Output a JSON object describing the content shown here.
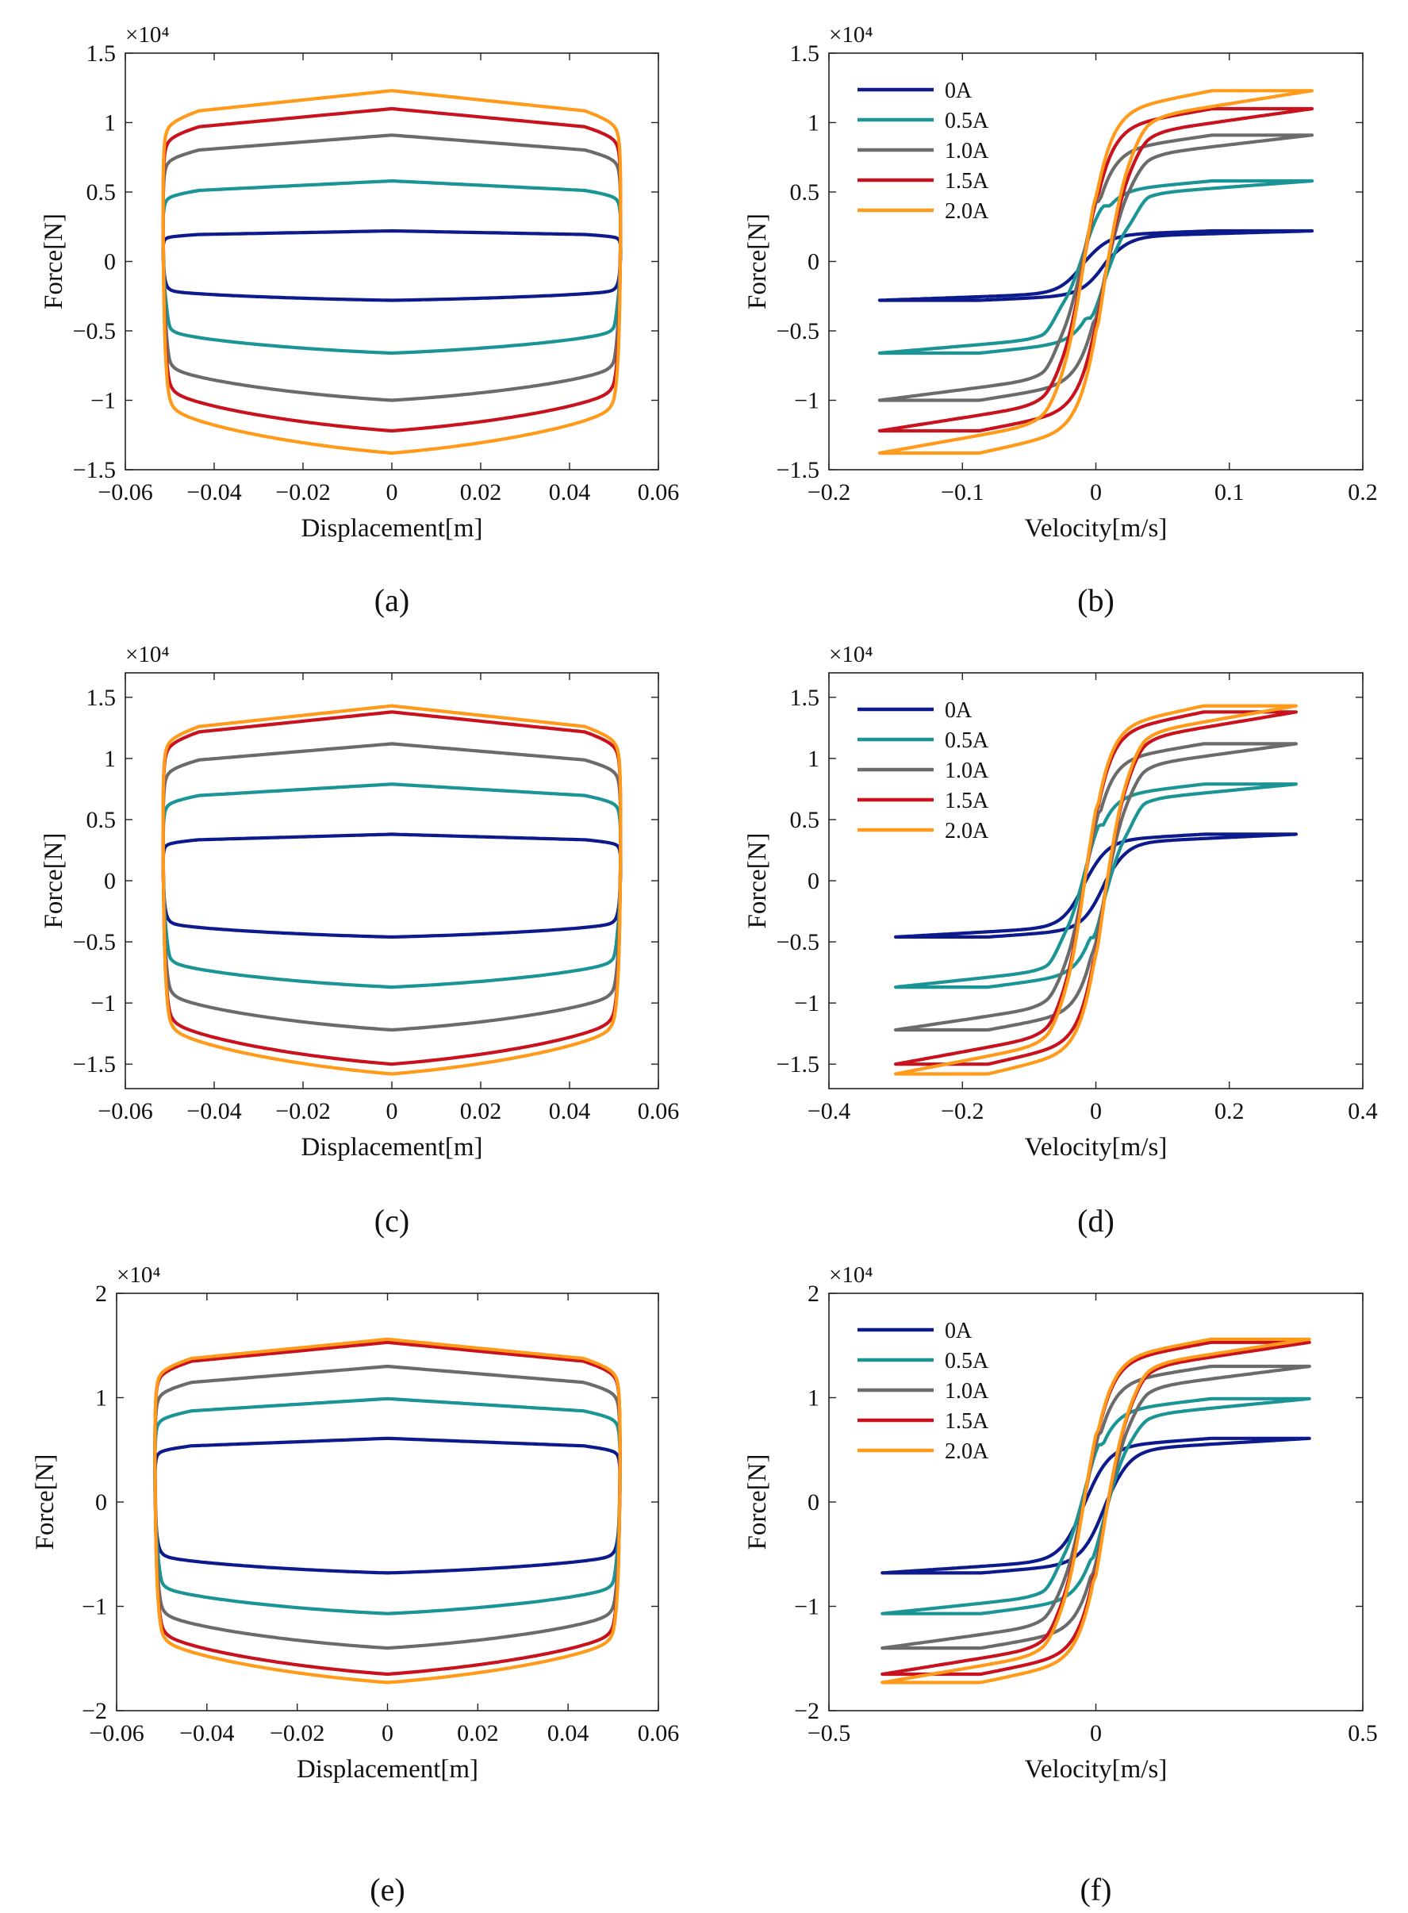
{
  "figure": {
    "series_names": [
      "0A",
      "0.5A",
      "1.0A",
      "1.5A",
      "2.0A"
    ],
    "series_colors": [
      "#0d1a8c",
      "#1a9494",
      "#6b6b6b",
      "#c8121e",
      "#ff9a1a"
    ]
  },
  "chart_data": [
    {
      "id": "a",
      "caption": "(a)",
      "type": "line",
      "kind": "disp",
      "xlabel": "Displacement[m]",
      "ylabel": "Force[N]",
      "multiplier": "×10⁴",
      "xlim": [
        -0.06,
        0.06
      ],
      "ylim": [
        -1.5,
        1.5
      ],
      "xticks": [
        "−0.06",
        "−0.04",
        "−0.02",
        "0",
        "0.02",
        "0.04",
        "0.06"
      ],
      "yticks": [
        "−1.5",
        "−1",
        "−0.5",
        "0",
        "0.5",
        "1",
        "1.5"
      ],
      "amplitude": 0.0515,
      "velocity_amplitude": 0.162,
      "series": [
        {
          "name": "0A",
          "upper": 0.22,
          "lower": -0.28,
          "knee": 0.0
        },
        {
          "name": "0.5A",
          "upper": 0.58,
          "lower": -0.66,
          "knee": 0.38
        },
        {
          "name": "1.0A",
          "upper": 0.91,
          "lower": -1.0,
          "knee": 0.38
        },
        {
          "name": "1.5A",
          "upper": 1.1,
          "lower": -1.22,
          "knee": 0.38
        },
        {
          "name": "2.0A",
          "upper": 1.23,
          "lower": -1.38,
          "knee": 0.38
        }
      ]
    },
    {
      "id": "b",
      "caption": "(b)",
      "type": "line",
      "kind": "vel",
      "xlabel": "Velocity[m/s]",
      "ylabel": "Force[N]",
      "multiplier": "×10⁴",
      "xlim": [
        -0.2,
        0.2
      ],
      "ylim": [
        -1.5,
        1.5
      ],
      "xticks": [
        "−0.2",
        "−0.1",
        "0",
        "0.1",
        "0.2"
      ],
      "yticks": [
        "−1.5",
        "−1",
        "−0.5",
        "0",
        "0.5",
        "1",
        "1.5"
      ],
      "velocity_amplitude": 0.162,
      "legend": "top-left",
      "series": [
        {
          "name": "0A",
          "upper": 0.22,
          "lower": -0.28,
          "knee": 0.0
        },
        {
          "name": "0.5A",
          "upper": 0.58,
          "lower": -0.66,
          "knee": 0.38
        },
        {
          "name": "1.0A",
          "upper": 0.91,
          "lower": -1.0,
          "knee": 0.38
        },
        {
          "name": "1.5A",
          "upper": 1.1,
          "lower": -1.22,
          "knee": 0.38
        },
        {
          "name": "2.0A",
          "upper": 1.23,
          "lower": -1.38,
          "knee": 0.38
        }
      ]
    },
    {
      "id": "c",
      "caption": "(c)",
      "type": "line",
      "kind": "disp",
      "xlabel": "Displacement[m]",
      "ylabel": "Force[N]",
      "multiplier": "×10⁴",
      "xlim": [
        -0.06,
        0.06
      ],
      "ylim": [
        -1.7,
        1.7
      ],
      "xticks": [
        "−0.06",
        "−0.04",
        "−0.02",
        "0",
        "0.02",
        "0.04",
        "0.06"
      ],
      "yticks": [
        "−1.5",
        "−1",
        "−0.5",
        "0",
        "0.5",
        "1",
        "1.5"
      ],
      "amplitude": 0.0515,
      "velocity_amplitude": 0.3,
      "series": [
        {
          "name": "0A",
          "upper": 0.38,
          "lower": -0.46,
          "knee": 0.0
        },
        {
          "name": "0.5A",
          "upper": 0.79,
          "lower": -0.87,
          "knee": 0.42
        },
        {
          "name": "1.0A",
          "upper": 1.12,
          "lower": -1.22,
          "knee": 0.5
        },
        {
          "name": "1.5A",
          "upper": 1.38,
          "lower": -1.5,
          "knee": 0.5
        },
        {
          "name": "2.0A",
          "upper": 1.43,
          "lower": -1.58,
          "knee": 0.5
        }
      ]
    },
    {
      "id": "d",
      "caption": "(d)",
      "type": "line",
      "kind": "vel",
      "xlabel": "Velocity[m/s]",
      "ylabel": "Force[N]",
      "multiplier": "×10⁴",
      "xlim": [
        -0.4,
        0.4
      ],
      "ylim": [
        -1.7,
        1.7
      ],
      "xticks": [
        "−0.4",
        "−0.2",
        "0",
        "0.2",
        "0.4"
      ],
      "yticks": [
        "−1.5",
        "−1",
        "−0.5",
        "0",
        "0.5",
        "1",
        "1.5"
      ],
      "velocity_amplitude": 0.3,
      "legend": "top-left",
      "series": [
        {
          "name": "0A",
          "upper": 0.38,
          "lower": -0.46,
          "knee": 0.0
        },
        {
          "name": "0.5A",
          "upper": 0.79,
          "lower": -0.87,
          "knee": 0.42
        },
        {
          "name": "1.0A",
          "upper": 1.12,
          "lower": -1.22,
          "knee": 0.5
        },
        {
          "name": "1.5A",
          "upper": 1.38,
          "lower": -1.5,
          "knee": 0.5
        },
        {
          "name": "2.0A",
          "upper": 1.43,
          "lower": -1.58,
          "knee": 0.5
        }
      ]
    },
    {
      "id": "e",
      "caption": "(e)",
      "type": "line",
      "kind": "disp",
      "xlabel": "Displacement[m]",
      "ylabel": "Force[N]",
      "multiplier": "×10⁴",
      "xlim": [
        -0.06,
        0.06
      ],
      "ylim": [
        -2,
        2
      ],
      "xticks": [
        "−0.06",
        "−0.04",
        "−0.02",
        "0",
        "0.02",
        "0.04",
        "0.06"
      ],
      "yticks": [
        "−2",
        "−1",
        "0",
        "1",
        "2"
      ],
      "amplitude": 0.0515,
      "velocity_amplitude": 0.4,
      "series": [
        {
          "name": "0A",
          "upper": 0.61,
          "lower": -0.68,
          "knee": 0.0
        },
        {
          "name": "0.5A",
          "upper": 0.99,
          "lower": -1.07,
          "knee": 0.5
        },
        {
          "name": "1.0A",
          "upper": 1.3,
          "lower": -1.4,
          "knee": 0.6
        },
        {
          "name": "1.5A",
          "upper": 1.53,
          "lower": -1.65,
          "knee": 0.6
        },
        {
          "name": "2.0A",
          "upper": 1.56,
          "lower": -1.73,
          "knee": 0.6
        }
      ]
    },
    {
      "id": "f",
      "caption": "(f)",
      "type": "line",
      "kind": "vel",
      "xlabel": "Velocity[m/s]",
      "ylabel": "Force[N]",
      "multiplier": "×10⁴",
      "xlim": [
        -0.5,
        0.5
      ],
      "ylim": [
        -2,
        2
      ],
      "xticks": [
        "−0.5",
        "0",
        "0.5"
      ],
      "yticks": [
        "−2",
        "−1",
        "0",
        "1",
        "2"
      ],
      "velocity_amplitude": 0.4,
      "legend": "top-left",
      "series": [
        {
          "name": "0A",
          "upper": 0.61,
          "lower": -0.68,
          "knee": 0.0
        },
        {
          "name": "0.5A",
          "upper": 0.99,
          "lower": -1.07,
          "knee": 0.5
        },
        {
          "name": "1.0A",
          "upper": 1.3,
          "lower": -1.4,
          "knee": 0.6
        },
        {
          "name": "1.5A",
          "upper": 1.53,
          "lower": -1.65,
          "knee": 0.6
        },
        {
          "name": "2.0A",
          "upper": 1.56,
          "lower": -1.73,
          "knee": 0.6
        }
      ]
    }
  ]
}
